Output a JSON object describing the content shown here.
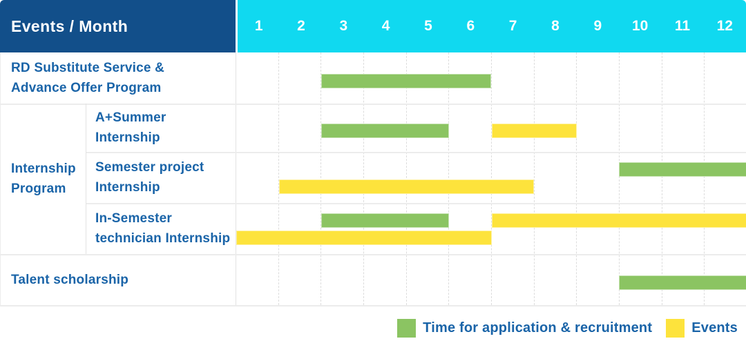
{
  "colors": {
    "header_bg": "#124f8a",
    "months_bg": "#10d9f0",
    "label_text": "#1a64a8",
    "green": "#8bc462",
    "yellow": "#fde33c"
  },
  "header": {
    "title": "Events / Month",
    "months": [
      "1",
      "2",
      "3",
      "4",
      "5",
      "6",
      "7",
      "8",
      "9",
      "10",
      "11",
      "12"
    ]
  },
  "chart_data": {
    "type": "bar",
    "subtype": "gantt",
    "title": "Events / Month",
    "x_axis": {
      "label": "Month",
      "ticks": [
        1,
        2,
        3,
        4,
        5,
        6,
        7,
        8,
        9,
        10,
        11,
        12
      ],
      "range": [
        1,
        12
      ]
    },
    "bar_meaning": {
      "start": "bar begins at start of this month",
      "end": "bar ends at end of this month"
    },
    "rows": [
      {
        "group": "",
        "label": "RD Substitute Service & Advance Offer Program",
        "label_lines": [
          "RD Substitute Service &",
          "Advance Offer Program"
        ],
        "lines": [
          [
            {
              "color": "green",
              "start": 3,
              "end": 6
            }
          ]
        ]
      },
      {
        "group": "Internship Program",
        "label": "A+Summer Internship",
        "label_lines": [
          "A+Summer",
          "Internship"
        ],
        "lines": [
          [
            {
              "color": "green",
              "start": 3,
              "end": 5
            },
            {
              "color": "yellow",
              "start": 7,
              "end": 8
            }
          ]
        ]
      },
      {
        "group": "Internship Program",
        "label": "Semester project Internship",
        "label_lines": [
          "Semester project",
          "Internship"
        ],
        "lines": [
          [
            {
              "color": "green",
              "start": 10,
              "end": 12
            }
          ],
          [
            {
              "color": "yellow",
              "start": 2,
              "end": 7
            }
          ]
        ]
      },
      {
        "group": "Internship Program",
        "label": "In-Semester technician Internship",
        "label_lines": [
          "In-Semester",
          "technician Internship"
        ],
        "lines": [
          [
            {
              "color": "green",
              "start": 3,
              "end": 5
            },
            {
              "color": "yellow",
              "start": 7,
              "end": 12
            }
          ],
          [
            {
              "color": "yellow",
              "start": 1,
              "end": 6
            }
          ]
        ]
      },
      {
        "group": "",
        "label": "Talent scholarship",
        "label_lines": [
          "Talent scholarship"
        ],
        "lines": [
          [
            {
              "color": "green",
              "start": 10,
              "end": 12
            }
          ]
        ]
      }
    ],
    "group_label": "Internship Program",
    "group_label_lines": [
      "Internship",
      "Program"
    ],
    "legend": [
      {
        "color": "green",
        "label": "Time for application & recruitment"
      },
      {
        "color": "yellow",
        "label": "Events"
      }
    ],
    "legend_position": "bottom-right"
  },
  "legend": {
    "green_label": "Time for application & recruitment",
    "yellow_label": "Events"
  }
}
